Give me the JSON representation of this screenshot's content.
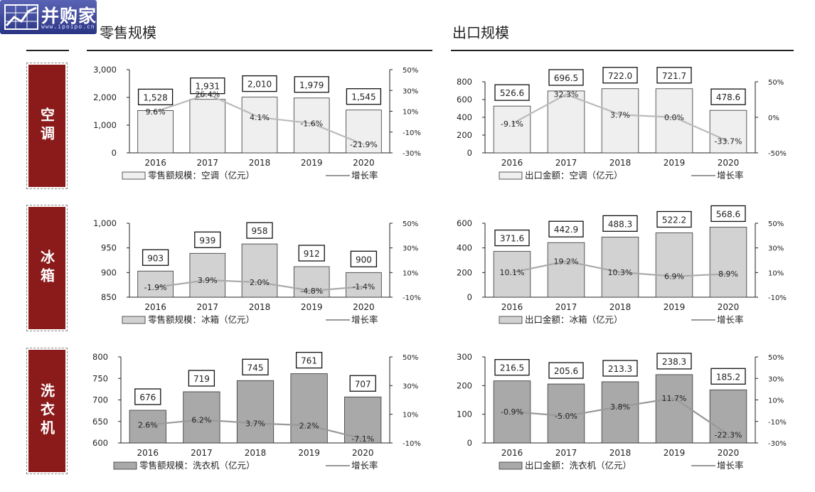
{
  "logo": {
    "text": "并购家",
    "url": "www.ipoipo.cn"
  },
  "headers": {
    "left": "零售规模",
    "right": "出口规模"
  },
  "categories": [
    "空调",
    "冰箱",
    "洗衣机"
  ],
  "chart_data": [
    {
      "type": "bar",
      "id": "ac-retail",
      "categories": [
        "2016",
        "2017",
        "2018",
        "2019",
        "2020"
      ],
      "series": [
        {
          "name": "零售额规模：空调（亿元）",
          "values": [
            1528,
            1931,
            2010,
            1979,
            1545
          ],
          "labels": [
            "1,528",
            "1,931",
            "2,010",
            "1,979",
            "1,545"
          ],
          "color": "#efefef"
        },
        {
          "name": "增长率",
          "type": "line",
          "axis": "right",
          "values": [
            9.6,
            26.4,
            4.1,
            -1.6,
            -21.9
          ],
          "labels": [
            "9.6%",
            "26.4%",
            "4.1%",
            "-1.6%",
            "-21.9%"
          ],
          "color": "#bbbbbb"
        }
      ],
      "ylim": [
        0,
        3000
      ],
      "yticks": [
        "0",
        "1,000",
        "2,000",
        "3,000"
      ],
      "y2lim": [
        -30,
        50
      ],
      "y2ticks": [
        "-30%",
        "-10%",
        "10%",
        "30%",
        "50%"
      ]
    },
    {
      "type": "bar",
      "id": "ac-export",
      "categories": [
        "2016",
        "2017",
        "2018",
        "2019",
        "2020"
      ],
      "series": [
        {
          "name": "出口金额：空调（亿元）",
          "values": [
            526.6,
            696.5,
            722.0,
            721.7,
            478.6
          ],
          "labels": [
            "526.6",
            "696.5",
            "722.0",
            "721.7",
            "478.6"
          ],
          "color": "#efefef"
        },
        {
          "name": "增长率",
          "type": "line",
          "axis": "right",
          "values": [
            -9.1,
            32.3,
            3.7,
            0.0,
            -33.7
          ],
          "labels": [
            "-9.1%",
            "32.3%",
            "3.7%",
            "0.0%",
            "-33.7%"
          ],
          "color": "#bbbbbb"
        }
      ],
      "ylim": [
        0,
        800
      ],
      "yticks": [
        "0",
        "200",
        "400",
        "600",
        "800"
      ],
      "y2lim": [
        -50,
        50
      ],
      "y2ticks": [
        "-50%",
        "0%",
        "50%"
      ]
    },
    {
      "type": "bar",
      "id": "fridge-retail",
      "categories": [
        "2016",
        "2017",
        "2018",
        "2019",
        "2020"
      ],
      "series": [
        {
          "name": "零售额规模：冰箱（亿元）",
          "values": [
            903,
            939,
            958,
            912,
            900
          ],
          "labels": [
            "903",
            "939",
            "958",
            "912",
            "900"
          ],
          "color": "#d2d2d2"
        },
        {
          "name": "增长率",
          "type": "line",
          "axis": "right",
          "values": [
            -1.9,
            3.9,
            2.0,
            -4.8,
            -1.4
          ],
          "labels": [
            "-1.9%",
            "3.9%",
            "2.0%",
            "-4.8%",
            "-1.4%"
          ],
          "color": "#aaaaaa"
        }
      ],
      "ylim": [
        850,
        1000
      ],
      "yticks": [
        "850",
        "900",
        "950",
        "1,000"
      ],
      "y2lim": [
        -10,
        50
      ],
      "y2ticks": [
        "-10%",
        "10%",
        "30%",
        "50%"
      ]
    },
    {
      "type": "bar",
      "id": "fridge-export",
      "categories": [
        "2016",
        "2017",
        "2018",
        "2019",
        "2020"
      ],
      "series": [
        {
          "name": "出口金额：冰箱（亿元）",
          "values": [
            371.6,
            442.9,
            488.3,
            522.2,
            568.6
          ],
          "labels": [
            "371.6",
            "442.9",
            "488.3",
            "522.2",
            "568.6"
          ],
          "color": "#d2d2d2"
        },
        {
          "name": "增长率",
          "type": "line",
          "axis": "right",
          "values": [
            10.1,
            19.2,
            10.3,
            6.9,
            8.9
          ],
          "labels": [
            "10.1%",
            "19.2%",
            "10.3%",
            "6.9%",
            "8.9%"
          ],
          "color": "#aaaaaa"
        }
      ],
      "ylim": [
        0,
        600
      ],
      "yticks": [
        "0",
        "200",
        "400",
        "600"
      ],
      "y2lim": [
        -10,
        50
      ],
      "y2ticks": [
        "-10%",
        "10%",
        "30%",
        "50%"
      ]
    },
    {
      "type": "bar",
      "id": "washer-retail",
      "categories": [
        "2016",
        "2017",
        "2018",
        "2019",
        "2020"
      ],
      "series": [
        {
          "name": "零售额规模：洗衣机（亿元）",
          "values": [
            676,
            719,
            745,
            761,
            707
          ],
          "labels": [
            "676",
            "719",
            "745",
            "761",
            "707"
          ],
          "color": "#a9a9a9"
        },
        {
          "name": "增长率",
          "type": "line",
          "axis": "right",
          "values": [
            2.6,
            6.2,
            3.7,
            2.2,
            -7.1
          ],
          "labels": [
            "2.6%",
            "6.2%",
            "3.7%",
            "2.2%",
            "-7.1%"
          ],
          "color": "#999999"
        }
      ],
      "ylim": [
        600,
        800
      ],
      "yticks": [
        "600",
        "650",
        "700",
        "750",
        "800"
      ],
      "y2lim": [
        -10,
        50
      ],
      "y2ticks": [
        "-10%",
        "10%",
        "30%",
        "50%"
      ]
    },
    {
      "type": "bar",
      "id": "washer-export",
      "categories": [
        "2016",
        "2017",
        "2018",
        "2019",
        "2020"
      ],
      "series": [
        {
          "name": "出口金额：洗衣机（亿元）",
          "values": [
            216.5,
            205.6,
            213.3,
            238.3,
            185.2
          ],
          "labels": [
            "216.5",
            "205.6",
            "213.3",
            "238.3",
            "185.2"
          ],
          "color": "#a9a9a9"
        },
        {
          "name": "增长率",
          "type": "line",
          "axis": "right",
          "values": [
            -0.9,
            -5.0,
            3.8,
            11.7,
            -22.3
          ],
          "labels": [
            "-0.9%",
            "-5.0%",
            "3.8%",
            "11.7%",
            "-22.3%"
          ],
          "color": "#999999"
        }
      ],
      "ylim": [
        0,
        300
      ],
      "yticks": [
        "0",
        "100",
        "200",
        "300"
      ],
      "y2lim": [
        -30,
        50
      ],
      "y2ticks": [
        "-30%",
        "-10%",
        "10%",
        "30%",
        "50%"
      ]
    }
  ]
}
